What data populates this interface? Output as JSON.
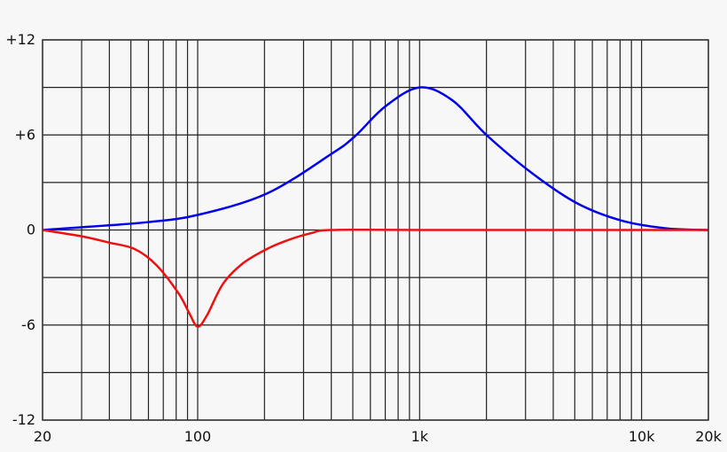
{
  "chart_data": {
    "type": "line",
    "title": "",
    "xlabel": "",
    "ylabel": "",
    "x_scale": "log",
    "xlim": [
      20,
      20000
    ],
    "ylim": [
      -12,
      12
    ],
    "grid": true,
    "x_grid": [
      20,
      30,
      40,
      50,
      60,
      70,
      80,
      90,
      100,
      200,
      300,
      400,
      500,
      600,
      700,
      800,
      900,
      1000,
      2000,
      3000,
      4000,
      5000,
      6000,
      7000,
      8000,
      9000,
      10000,
      20000
    ],
    "y_grid": [
      -12,
      -9,
      -6,
      -3,
      0,
      3,
      6,
      9,
      12
    ],
    "x_ticks": [
      {
        "value": 20,
        "label": "20"
      },
      {
        "value": 100,
        "label": "100"
      },
      {
        "value": 1000,
        "label": "1k"
      },
      {
        "value": 10000,
        "label": "10k"
      },
      {
        "value": 20000,
        "label": "20k"
      }
    ],
    "y_ticks": [
      {
        "value": 12,
        "label": "+12"
      },
      {
        "value": 6,
        "label": "+6"
      },
      {
        "value": 0,
        "label": "0"
      },
      {
        "value": -6,
        "label": "-6"
      },
      {
        "value": -12,
        "label": "-12"
      }
    ],
    "series": [
      {
        "color": "#0000ee",
        "points": [
          [
            20,
            0
          ],
          [
            32,
            0.2
          ],
          [
            60,
            0.5
          ],
          [
            100,
            0.95
          ],
          [
            205,
            2.3
          ],
          [
            400,
            4.8
          ],
          [
            510,
            5.9
          ],
          [
            700,
            7.8
          ],
          [
            1000,
            9
          ],
          [
            1400,
            8.2
          ],
          [
            2000,
            6
          ],
          [
            3200,
            3.6
          ],
          [
            5100,
            1.7
          ],
          [
            8100,
            0.6
          ],
          [
            13000,
            0.1
          ],
          [
            20000,
            0
          ]
        ]
      },
      {
        "color": "#ee1111",
        "points": [
          [
            20,
            0
          ],
          [
            30,
            -0.4
          ],
          [
            40,
            -0.8
          ],
          [
            52,
            -1.2
          ],
          [
            65,
            -2.2
          ],
          [
            82,
            -4
          ],
          [
            92,
            -5.3
          ],
          [
            100,
            -6.1
          ],
          [
            110,
            -5.4
          ],
          [
            130,
            -3.4
          ],
          [
            160,
            -2.1
          ],
          [
            205,
            -1.2
          ],
          [
            260,
            -0.6
          ],
          [
            325,
            -0.2
          ],
          [
            400,
            0
          ],
          [
            1000,
            0
          ],
          [
            20000,
            0
          ]
        ]
      }
    ]
  }
}
